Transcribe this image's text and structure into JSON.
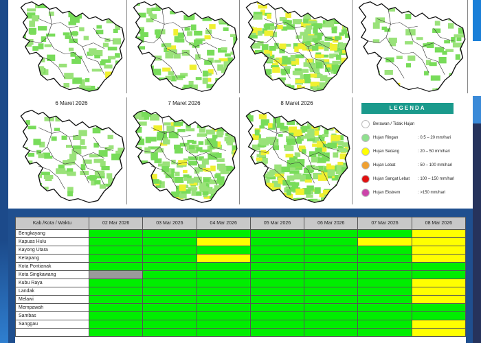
{
  "maps": [
    {
      "caption": ""
    },
    {
      "caption": ""
    },
    {
      "caption": ""
    },
    {
      "caption": ""
    },
    {
      "caption": "6 Maret 2026"
    },
    {
      "caption": "7 Maret 2026"
    },
    {
      "caption": "8 Maret 2026"
    }
  ],
  "legend": {
    "title": "LEGENDA",
    "items": [
      {
        "name": "Berawan / Tidak Hujan",
        "value": "",
        "color": "#ffffff"
      },
      {
        "name": "Hujan Ringan",
        "value": ": 0.5 – 20 mm/hari",
        "color": "#8fe08f"
      },
      {
        "name": "Hujan Sedang",
        "value": ": 20 – 50 mm/hari",
        "color": "#ffff00"
      },
      {
        "name": "Hujan Lebat",
        "value": ": 50 – 100 mm/hari",
        "color": "#f0a030"
      },
      {
        "name": "Hujan Sangat Lebat",
        "value": ": 100 – 150 mm/hari",
        "color": "#e01010"
      },
      {
        "name": "Hujan Ekstrem",
        "value": ": >150 mm/hari",
        "color": "#cc44aa"
      }
    ]
  },
  "table": {
    "header": [
      "Kab./Kota / Waktu",
      "02 Mar 2026",
      "03 Mar 2026",
      "04 Mar 2026",
      "05 Mar 2026",
      "06 Mar 2026",
      "07 Mar 2026",
      "08 Mar 2026"
    ],
    "rows": [
      {
        "name": "Bengkayang",
        "cells": [
          "Hujan Ringan",
          "Hujan Ringan",
          "Hujan Ringan",
          "Hujan Ringan",
          "Hujan Ringan",
          "Hujan Ringan",
          "Hujan Sedang"
        ]
      },
      {
        "name": "Kapuas Hulu",
        "cells": [
          "Hujan Ringan",
          "Hujan Ringan",
          "Hujan Sedang",
          "Hujan Ringan",
          "Hujan Ringan",
          "Hujan Sedang",
          "Hujan Sedang"
        ]
      },
      {
        "name": "Kayong Utara",
        "cells": [
          "Hujan Ringan",
          "Hujan Ringan",
          "Hujan Ringan",
          "Hujan Ringan",
          "Hujan Ringan",
          "Hujan Ringan",
          "Hujan Sedang"
        ]
      },
      {
        "name": "Ketapang",
        "cells": [
          "Hujan Ringan",
          "Hujan Ringan",
          "Hujan Sedang",
          "Hujan Ringan",
          "Hujan Ringan",
          "Hujan Ringan",
          "Hujan Sedang"
        ]
      },
      {
        "name": "Kota Pontianak",
        "cells": [
          "Hujan Ringan",
          "Hujan Ringan",
          "Hujan Ringan",
          "Hujan Ringan",
          "Hujan Ringan",
          "Hujan Ringan",
          "Hujan Ringan"
        ]
      },
      {
        "name": "Kota Singkawang",
        "cells": [
          "No Data",
          "Hujan Ringan",
          "Hujan Ringan",
          "Hujan Ringan",
          "Hujan Ringan",
          "Hujan Ringan",
          "Hujan Ringan"
        ]
      },
      {
        "name": "Kubu Raya",
        "cells": [
          "Hujan Ringan",
          "Hujan Ringan",
          "Hujan Ringan",
          "Hujan Ringan",
          "Hujan Ringan",
          "Hujan Ringan",
          "Hujan Sedang"
        ]
      },
      {
        "name": "Landak",
        "cells": [
          "Hujan Ringan",
          "Hujan Ringan",
          "Hujan Ringan",
          "Hujan Ringan",
          "Hujan Ringan",
          "Hujan Ringan",
          "Hujan Sedang"
        ]
      },
      {
        "name": "Melawi",
        "cells": [
          "Hujan Ringan",
          "Hujan Ringan",
          "Hujan Ringan",
          "Hujan Ringan",
          "Hujan Ringan",
          "Hujan Ringan",
          "Hujan Sedang"
        ]
      },
      {
        "name": "Mempawah",
        "cells": [
          "Hujan Ringan",
          "Hujan Ringan",
          "Hujan Ringan",
          "Hujan Ringan",
          "Hujan Ringan",
          "Hujan Ringan",
          "Hujan Ringan"
        ]
      },
      {
        "name": "Sambas",
        "cells": [
          "Hujan Ringan",
          "Hujan Ringan",
          "Hujan Ringan",
          "Hujan Ringan",
          "Hujan Ringan",
          "Hujan Ringan",
          "Hujan Ringan"
        ]
      },
      {
        "name": "Sanggau",
        "cells": [
          "Hujan Ringan",
          "Hujan Ringan",
          "Hujan Ringan",
          "Hujan Ringan",
          "Hujan Ringan",
          "Hujan Ringan",
          "Hujan Sedang"
        ]
      },
      {
        "name": "",
        "cells": [
          "Hujan Ringan",
          "Hujan Ringan",
          "Hujan Ringan",
          "Hujan Ringan",
          "Hujan Ringan",
          "Hujan Ringan",
          "Hujan Sedang"
        ]
      }
    ]
  }
}
